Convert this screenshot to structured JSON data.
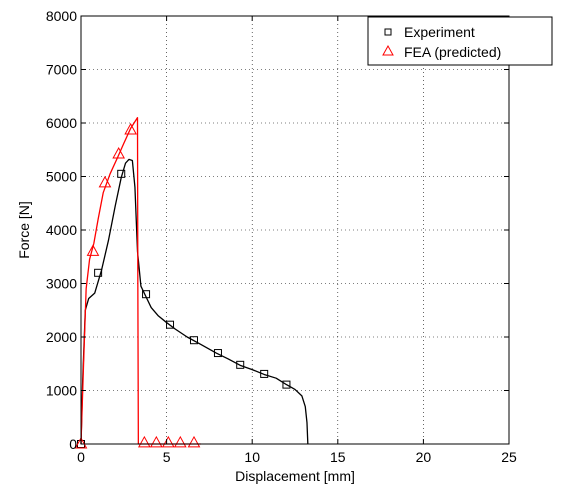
{
  "chart_data": {
    "type": "line",
    "title": "",
    "xlabel": "Displacement [mm]",
    "ylabel": "Force [N]",
    "xlim": [
      0,
      25
    ],
    "ylim": [
      0,
      8000
    ],
    "xticks": [
      0,
      5,
      10,
      15,
      20,
      25
    ],
    "yticks": [
      0,
      1000,
      2000,
      3000,
      4000,
      5000,
      6000,
      7000,
      8000
    ],
    "grid": true,
    "legend_position": "top-right",
    "series": [
      {
        "name": "Experiment",
        "color": "#000000",
        "marker": "square",
        "curve": [
          [
            0,
            0
          ],
          [
            0.1,
            1200
          ],
          [
            0.25,
            2500
          ],
          [
            0.45,
            2720
          ],
          [
            0.8,
            2820
          ],
          [
            1.2,
            3250
          ],
          [
            1.6,
            3800
          ],
          [
            2.0,
            4450
          ],
          [
            2.35,
            4980
          ],
          [
            2.6,
            5250
          ],
          [
            2.8,
            5320
          ],
          [
            3.0,
            5300
          ],
          [
            3.15,
            4800
          ],
          [
            3.3,
            3600
          ],
          [
            3.5,
            2950
          ],
          [
            3.8,
            2750
          ],
          [
            4.1,
            2550
          ],
          [
            4.5,
            2400
          ],
          [
            5.0,
            2270
          ],
          [
            5.5,
            2150
          ],
          [
            6.2,
            2000
          ],
          [
            7.0,
            1860
          ],
          [
            7.9,
            1700
          ],
          [
            8.6,
            1590
          ],
          [
            9.3,
            1470
          ],
          [
            10.0,
            1390
          ],
          [
            10.7,
            1300
          ],
          [
            11.4,
            1230
          ],
          [
            12.0,
            1110
          ],
          [
            12.5,
            1020
          ],
          [
            12.9,
            900
          ],
          [
            13.1,
            700
          ],
          [
            13.2,
            400
          ],
          [
            13.25,
            0
          ]
        ],
        "markers": [
          [
            0,
            0
          ],
          [
            1.0,
            3200
          ],
          [
            2.35,
            5050
          ],
          [
            3.8,
            2800
          ],
          [
            5.2,
            2230
          ],
          [
            6.6,
            1940
          ],
          [
            8.0,
            1700
          ],
          [
            9.3,
            1480
          ],
          [
            10.7,
            1310
          ],
          [
            12.0,
            1110
          ]
        ]
      },
      {
        "name": "FEA (predicted)",
        "color": "#ff0000",
        "marker": "triangle",
        "curve": [
          [
            0,
            0
          ],
          [
            0.15,
            1500
          ],
          [
            0.3,
            2900
          ],
          [
            0.5,
            3450
          ],
          [
            0.75,
            3750
          ],
          [
            1.0,
            4200
          ],
          [
            1.3,
            4700
          ],
          [
            1.7,
            5050
          ],
          [
            2.1,
            5330
          ],
          [
            2.5,
            5620
          ],
          [
            2.9,
            5900
          ],
          [
            3.3,
            6100
          ],
          [
            3.32,
            3000
          ],
          [
            3.35,
            0
          ],
          [
            7.0,
            0
          ]
        ],
        "markers": [
          [
            0,
            0
          ],
          [
            0.7,
            3600
          ],
          [
            1.4,
            4880
          ],
          [
            2.2,
            5420
          ],
          [
            2.9,
            5870
          ],
          [
            3.7,
            20
          ],
          [
            4.4,
            20
          ],
          [
            5.1,
            20
          ],
          [
            5.8,
            20
          ],
          [
            6.6,
            20
          ]
        ]
      }
    ]
  }
}
